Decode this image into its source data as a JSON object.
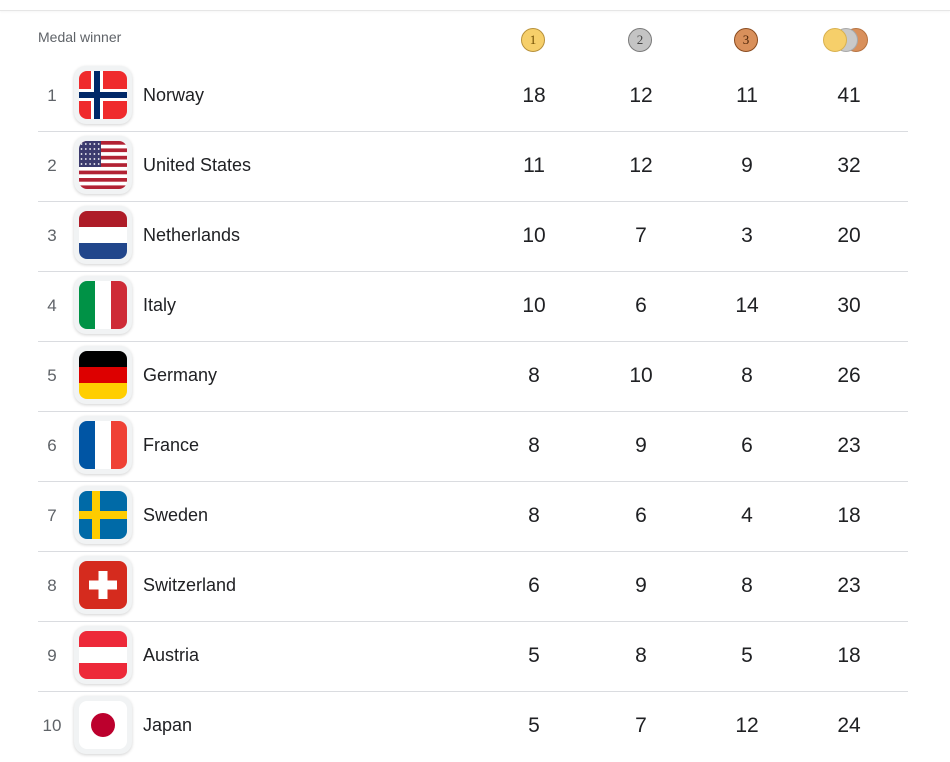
{
  "header": {
    "label": "Medal winner",
    "gold_icon": "gold-medal-icon",
    "silver_icon": "silver-medal-icon",
    "bronze_icon": "bronze-medal-icon",
    "total_icon": "total-medals-icon",
    "gold_number": "1",
    "silver_number": "2",
    "bronze_number": "3"
  },
  "colors": {
    "gold": "#f6cf6a",
    "silver": "#c4c4c4",
    "bronze": "#d9905b",
    "divider": "#dadce0"
  },
  "rows": [
    {
      "rank": "1",
      "country": "Norway",
      "flag": "norway-flag-icon",
      "gold": "18",
      "silver": "12",
      "bronze": "11",
      "total": "41"
    },
    {
      "rank": "2",
      "country": "United States",
      "flag": "united-states-flag-icon",
      "gold": "11",
      "silver": "12",
      "bronze": "9",
      "total": "32"
    },
    {
      "rank": "3",
      "country": "Netherlands",
      "flag": "netherlands-flag-icon",
      "gold": "10",
      "silver": "7",
      "bronze": "3",
      "total": "20"
    },
    {
      "rank": "4",
      "country": "Italy",
      "flag": "italy-flag-icon",
      "gold": "10",
      "silver": "6",
      "bronze": "14",
      "total": "30"
    },
    {
      "rank": "5",
      "country": "Germany",
      "flag": "germany-flag-icon",
      "gold": "8",
      "silver": "10",
      "bronze": "8",
      "total": "26"
    },
    {
      "rank": "6",
      "country": "France",
      "flag": "france-flag-icon",
      "gold": "8",
      "silver": "9",
      "bronze": "6",
      "total": "23"
    },
    {
      "rank": "7",
      "country": "Sweden",
      "flag": "sweden-flag-icon",
      "gold": "8",
      "silver": "6",
      "bronze": "4",
      "total": "18"
    },
    {
      "rank": "8",
      "country": "Switzerland",
      "flag": "switzerland-flag-icon",
      "gold": "6",
      "silver": "9",
      "bronze": "8",
      "total": "23"
    },
    {
      "rank": "9",
      "country": "Austria",
      "flag": "austria-flag-icon",
      "gold": "5",
      "silver": "8",
      "bronze": "5",
      "total": "18"
    },
    {
      "rank": "10",
      "country": "Japan",
      "flag": "japan-flag-icon",
      "gold": "5",
      "silver": "7",
      "bronze": "12",
      "total": "24"
    }
  ]
}
